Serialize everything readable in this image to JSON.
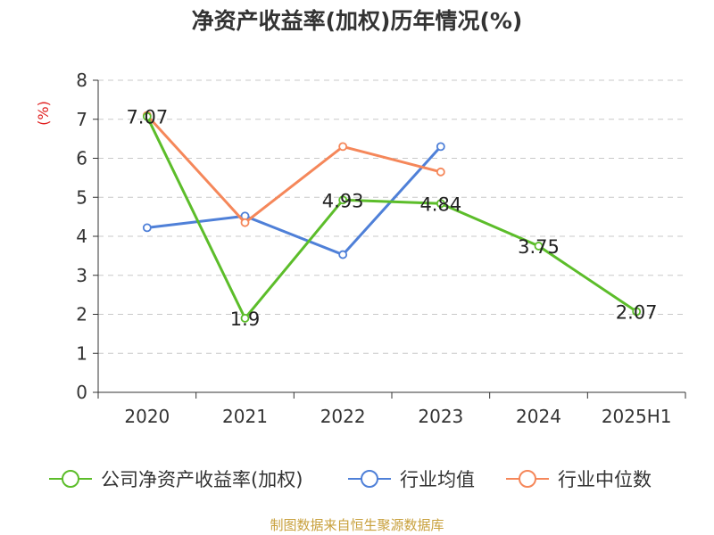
{
  "chart_data": {
    "type": "line",
    "title": "净资产收益率(加权)历年情况(%)",
    "ylabel": "(%)",
    "xlabel": "",
    "categories": [
      "2020",
      "2021",
      "2022",
      "2023",
      "2024",
      "2025H1"
    ],
    "yticks": [
      "0",
      "1",
      "2",
      "3",
      "4",
      "5",
      "6",
      "7",
      "8"
    ],
    "ylim": [
      0,
      8
    ],
    "grid": true,
    "legend_position": "bottom",
    "series": [
      {
        "name": "公司净资产收益率(加权)",
        "color": "#5cbd2a",
        "values": [
          7.07,
          1.9,
          4.93,
          4.84,
          3.75,
          2.07
        ],
        "labels": [
          "7.07",
          "1.9",
          "4.93",
          "4.84",
          "3.75",
          "2.07"
        ]
      },
      {
        "name": "行业均值",
        "color": "#4f80d8",
        "values": [
          4.22,
          4.52,
          3.53,
          6.3,
          null,
          null
        ]
      },
      {
        "name": "行业中位数",
        "color": "#f5875a",
        "values": [
          7.1,
          4.35,
          6.3,
          5.65,
          null,
          null
        ]
      }
    ]
  },
  "source_note": "制图数据来自恒生聚源数据库"
}
